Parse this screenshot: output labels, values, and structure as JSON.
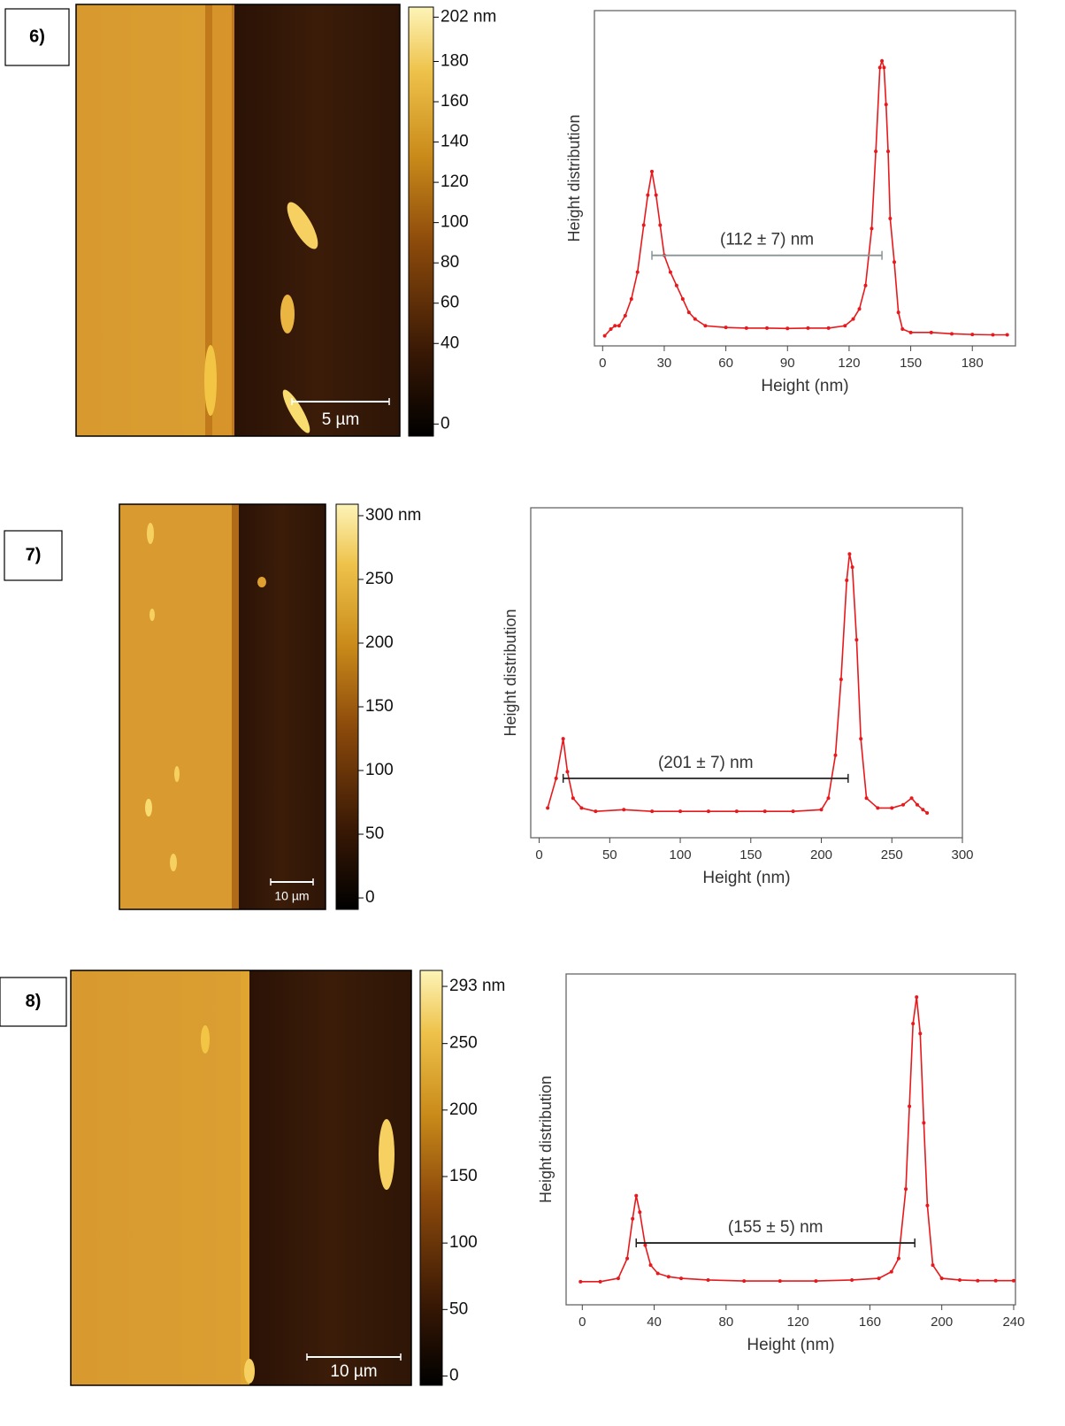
{
  "panels": [
    {
      "label": "6)",
      "scale_bar": "5 µm",
      "colorbar": {
        "ylim": [
          -6,
          207
        ],
        "ticks": [
          0,
          40,
          60,
          80,
          100,
          120,
          140,
          160,
          180,
          {
            "value": 202,
            "label": "202 nm"
          }
        ]
      }
    },
    {
      "label": "7)",
      "scale_bar": "10 µm",
      "colorbar": {
        "ylim": [
          -9,
          309
        ],
        "ticks": [
          0,
          50,
          100,
          150,
          200,
          250,
          {
            "value": 300,
            "label": "300 nm"
          }
        ]
      }
    },
    {
      "label": "8)",
      "scale_bar": "10 µm",
      "colorbar": {
        "ylim": [
          -7,
          305
        ],
        "ticks": [
          0,
          50,
          100,
          150,
          200,
          250,
          {
            "value": 293,
            "label": "293 nm"
          }
        ]
      }
    }
  ],
  "chart_data": [
    {
      "type": "line",
      "x_label": "Height (nm)",
      "y_label": "Height distribution",
      "color": "#e8191c",
      "xlim": [
        -4,
        201
      ],
      "xticks": [
        0,
        30,
        60,
        90,
        120,
        150,
        180
      ],
      "ylim": [
        0,
        100
      ],
      "x": [
        1,
        4,
        6,
        8,
        11,
        14,
        17,
        20,
        22,
        24,
        26,
        28,
        30,
        33,
        36,
        39,
        42,
        45,
        50,
        60,
        70,
        80,
        90,
        100,
        110,
        118,
        122,
        125,
        128,
        131,
        133,
        135,
        136,
        137,
        138,
        139,
        140,
        142,
        144,
        146,
        150,
        160,
        170,
        180,
        190,
        197
      ],
      "values": [
        3,
        5,
        6,
        6,
        9,
        14,
        22,
        36,
        45,
        52,
        45,
        36,
        27,
        22,
        18,
        14,
        10,
        8,
        6,
        5.5,
        5.3,
        5.3,
        5.2,
        5.3,
        5.3,
        6,
        8,
        11,
        18,
        35,
        58,
        83,
        85,
        83,
        72,
        58,
        38,
        25,
        10,
        5,
        4,
        4,
        3.6,
        3.4,
        3.3,
        3.3
      ],
      "annotation": {
        "text": "(112 ± 7) nm",
        "x": [
          24,
          136
        ],
        "y": 27,
        "color": "#8a9296"
      }
    },
    {
      "type": "line",
      "x_label": "Height (nm)",
      "y_label": "Height distribution",
      "color": "#e8191c",
      "xlim": [
        -6,
        300
      ],
      "xticks": [
        0,
        50,
        100,
        150,
        200,
        250,
        300
      ],
      "ylim": [
        0,
        100
      ],
      "x": [
        6,
        12,
        17,
        20,
        24,
        30,
        40,
        60,
        80,
        100,
        120,
        140,
        160,
        180,
        200,
        205,
        210,
        214,
        218,
        220,
        222,
        225,
        228,
        232,
        240,
        250,
        258,
        264,
        268,
        272,
        275
      ],
      "values": [
        9,
        18,
        30,
        20,
        12,
        9,
        8,
        8.5,
        8,
        8,
        8,
        8,
        8,
        8,
        8.5,
        12,
        25,
        48,
        78,
        86,
        82,
        60,
        30,
        12,
        9,
        9,
        10,
        12,
        10,
        8.5,
        7.5
      ],
      "annotation": {
        "text": "(201 ± 7) nm",
        "x": [
          17,
          219
        ],
        "y": 18,
        "color": "#222222"
      }
    },
    {
      "type": "line",
      "x_label": "Height (nm)",
      "y_label": "Height distribution",
      "color": "#e8191c",
      "xlim": [
        -9,
        241
      ],
      "xticks": [
        0,
        40,
        80,
        120,
        160,
        200,
        240
      ],
      "ylim": [
        0,
        100
      ],
      "x": [
        -1,
        10,
        20,
        25,
        28,
        30,
        32,
        35,
        38,
        42,
        48,
        55,
        70,
        90,
        110,
        130,
        150,
        165,
        172,
        176,
        180,
        182,
        184,
        186,
        188,
        190,
        192,
        195,
        200,
        210,
        220,
        230,
        240
      ],
      "values": [
        7,
        7,
        8,
        14,
        26,
        33,
        28,
        18,
        12,
        9.5,
        8.5,
        8,
        7.5,
        7.2,
        7.2,
        7.2,
        7.5,
        8,
        10,
        14,
        35,
        60,
        85,
        93,
        82,
        55,
        30,
        12,
        8,
        7.5,
        7.3,
        7.3,
        7.3
      ],
      "annotation": {
        "text": "(155 ± 5) nm",
        "x": [
          30,
          185
        ],
        "y": 18.7,
        "color": "#222222"
      }
    }
  ]
}
